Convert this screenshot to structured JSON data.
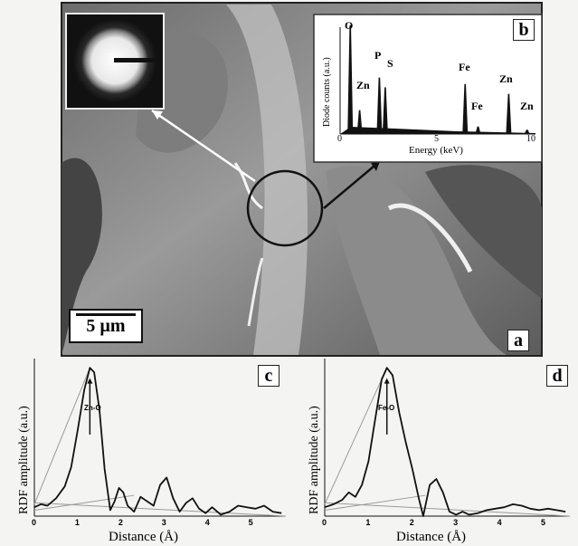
{
  "panels": {
    "a": "a",
    "b": "b",
    "c": "c",
    "d": "d"
  },
  "scale_bar": "5 µm",
  "eds": {
    "ylabel": "Diode counts (a.u.)",
    "xlabel": "Energy (keV)",
    "ticks": [
      "0",
      "5",
      "10"
    ],
    "peak_labels": [
      "O",
      "Zn",
      "P",
      "S",
      "Fe",
      "Fe",
      "Zn",
      "Zn"
    ]
  },
  "chart_data": [
    {
      "panel": "b",
      "type": "bar",
      "xlabel": "Energy (keV)",
      "ylabel": "Diode counts (a.u.)",
      "xlim": [
        0,
        10
      ],
      "x": [
        0.52,
        1.0,
        2.01,
        2.31,
        6.4,
        7.06,
        8.63,
        9.57
      ],
      "values": [
        100,
        22,
        52,
        43,
        46,
        7,
        37,
        4
      ],
      "peak_labels": [
        "O",
        "Zn",
        "P",
        "S",
        "Fe",
        "Fe",
        "Zn",
        "Zn"
      ]
    },
    {
      "panel": "c",
      "type": "line",
      "xlabel": "Distance (Å)",
      "ylabel": "RDF amplitude (a.u.)",
      "xlim": [
        0,
        5.8
      ],
      "ylim": [
        0,
        1.05
      ],
      "xticks": [
        "0",
        "1",
        "2",
        "3",
        "4",
        "5"
      ],
      "annotation": "Zn-O",
      "x": [
        0,
        0.15,
        0.3,
        0.5,
        0.7,
        0.85,
        1.0,
        1.15,
        1.28,
        1.38,
        1.5,
        1.62,
        1.75,
        1.85,
        1.95,
        2.05,
        2.15,
        2.3,
        2.45,
        2.6,
        2.75,
        2.9,
        3.05,
        3.2,
        3.35,
        3.5,
        3.65,
        3.8,
        3.95,
        4.1,
        4.3,
        4.5,
        4.7,
        4.9,
        5.1,
        5.3,
        5.5,
        5.7
      ],
      "y": [
        0.06,
        0.08,
        0.07,
        0.12,
        0.2,
        0.33,
        0.58,
        0.85,
        1.0,
        0.97,
        0.72,
        0.32,
        0.04,
        0.1,
        0.19,
        0.16,
        0.07,
        0.03,
        0.13,
        0.1,
        0.07,
        0.21,
        0.26,
        0.12,
        0.03,
        0.09,
        0.12,
        0.05,
        0.02,
        0.06,
        0.01,
        0.03,
        0.07,
        0.06,
        0.05,
        0.07,
        0.03,
        0.02
      ]
    },
    {
      "panel": "d",
      "type": "line",
      "xlabel": "Distance (Å)",
      "ylabel": "RDF amplitude (a.u.)",
      "xlim": [
        0,
        5.6
      ],
      "ylim": [
        0,
        1.05
      ],
      "xticks": [
        "0",
        "1",
        "2",
        "3",
        "4",
        "5"
      ],
      "annotation": "Fe-O",
      "x": [
        0,
        0.2,
        0.4,
        0.55,
        0.7,
        0.85,
        1.0,
        1.15,
        1.3,
        1.42,
        1.55,
        1.7,
        1.85,
        2.0,
        2.15,
        2.25,
        2.4,
        2.55,
        2.7,
        2.85,
        3.0,
        3.15,
        3.3,
        3.5,
        3.7,
        3.9,
        4.1,
        4.3,
        4.5,
        4.7,
        4.9,
        5.1,
        5.3,
        5.5
      ],
      "y": [
        0.06,
        0.08,
        0.11,
        0.16,
        0.13,
        0.21,
        0.37,
        0.65,
        0.92,
        1.0,
        0.95,
        0.7,
        0.5,
        0.32,
        0.12,
        0.0,
        0.21,
        0.25,
        0.16,
        0.03,
        0.01,
        0.03,
        0.01,
        0.02,
        0.04,
        0.05,
        0.06,
        0.08,
        0.07,
        0.05,
        0.04,
        0.05,
        0.04,
        0.03
      ]
    }
  ]
}
